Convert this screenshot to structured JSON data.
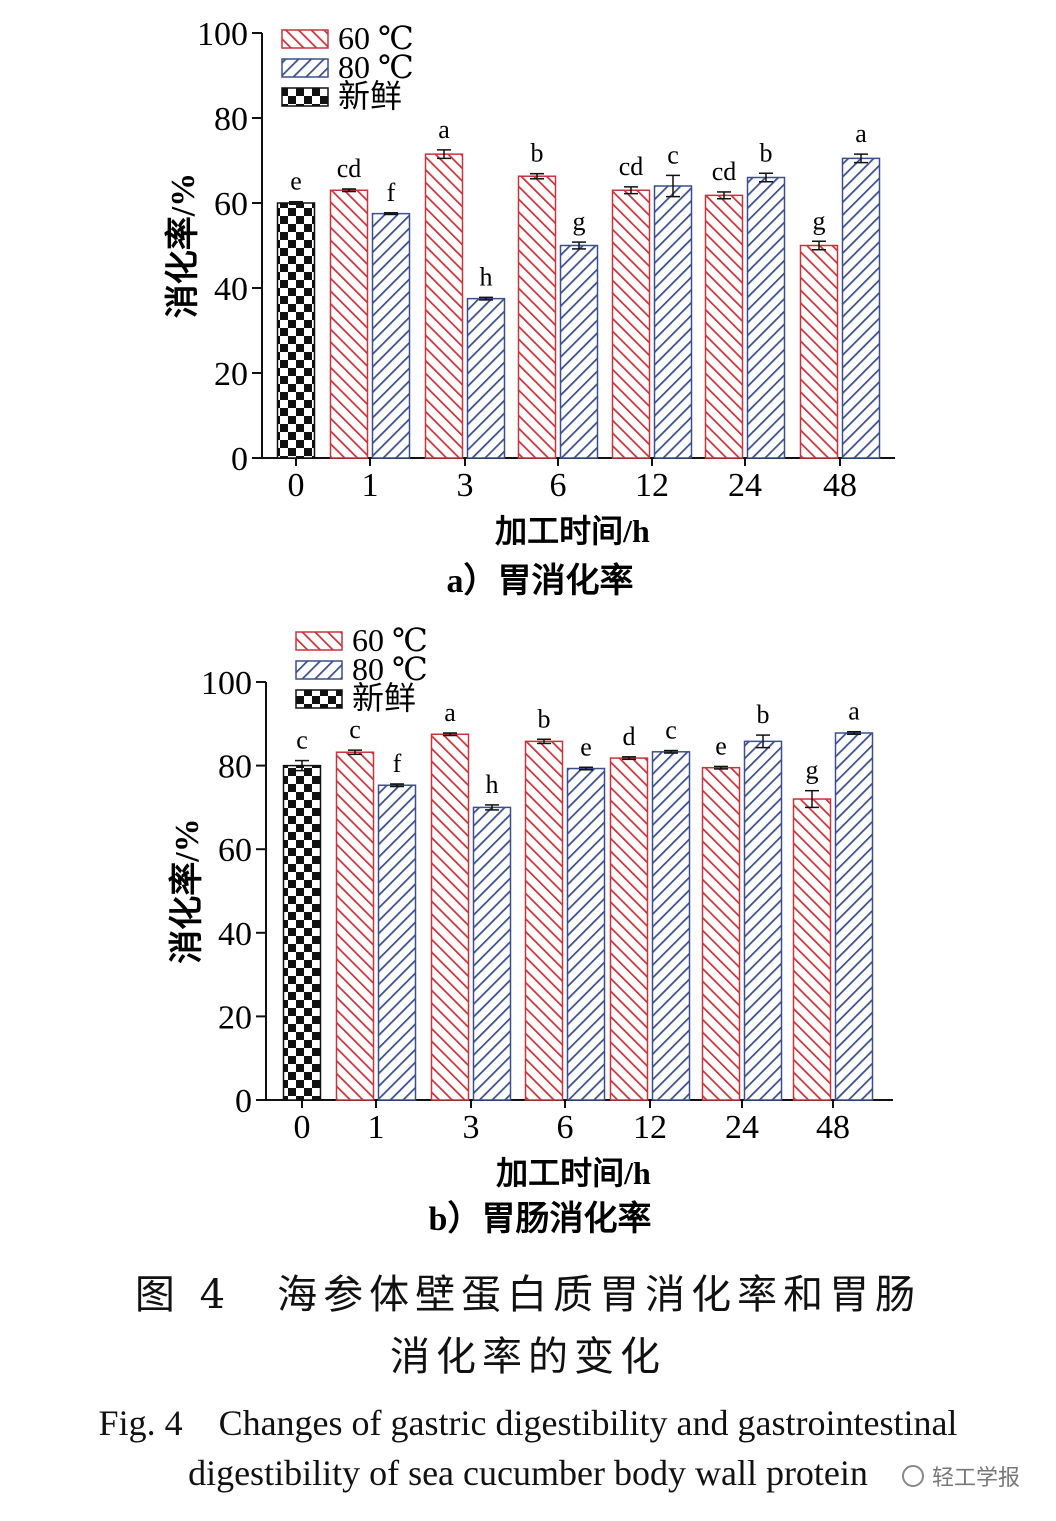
{
  "chart_data": [
    {
      "type": "bar",
      "subtitle": "a）胃消化率",
      "xlabel": "加工时间/h",
      "ylabel": "消化率/%",
      "ylim": [
        0,
        100
      ],
      "yticks": [
        0,
        20,
        40,
        60,
        80,
        100
      ],
      "categories": [
        "0",
        "1",
        "3",
        "6",
        "12",
        "24",
        "48"
      ],
      "legend_position": "top-left",
      "grid": false,
      "series": [
        {
          "name": "60 ℃",
          "color": "#c8343c",
          "values": [
            null,
            63.0,
            71.5,
            66.3,
            63.0,
            61.8,
            50.0
          ],
          "errors": [
            null,
            0.3,
            1.0,
            0.6,
            0.8,
            0.8,
            1.0
          ],
          "labels": [
            null,
            "cd",
            "a",
            "b",
            "cd",
            "cd",
            "g"
          ]
        },
        {
          "name": "80 ℃",
          "color": "#3b4f8c",
          "values": [
            null,
            57.5,
            37.5,
            50.0,
            64.0,
            66.0,
            70.5
          ],
          "errors": [
            null,
            0.2,
            0.3,
            0.8,
            2.5,
            1.0,
            1.0
          ],
          "labels": [
            null,
            "f",
            "h",
            "g",
            "c",
            "b",
            "a"
          ]
        },
        {
          "name": "新鲜",
          "color": "#111111",
          "values": [
            60.0,
            null,
            null,
            null,
            null,
            null,
            null
          ],
          "errors": [
            0.3,
            null,
            null,
            null,
            null,
            null,
            null
          ],
          "labels": [
            "e",
            null,
            null,
            null,
            null,
            null,
            null
          ]
        }
      ]
    },
    {
      "type": "bar",
      "subtitle": "b）胃肠消化率",
      "xlabel": "加工时间/h",
      "ylabel": "消化率/%",
      "ylim": [
        0,
        100
      ],
      "yticks": [
        0,
        20,
        40,
        60,
        80,
        100
      ],
      "categories": [
        "0",
        "1",
        "3",
        "6",
        "12",
        "24",
        "48"
      ],
      "legend_position": "top-left",
      "grid": false,
      "series": [
        {
          "name": "60 ℃",
          "color": "#c8343c",
          "values": [
            null,
            83.2,
            87.5,
            85.8,
            81.8,
            79.5,
            72.0
          ],
          "errors": [
            null,
            0.5,
            0.3,
            0.5,
            0.3,
            0.3,
            2.0
          ],
          "labels": [
            null,
            "c",
            "a",
            "b",
            "d",
            "e",
            "g"
          ]
        },
        {
          "name": "80 ℃",
          "color": "#3b4f8c",
          "values": [
            null,
            75.3,
            70.0,
            79.3,
            83.3,
            85.8,
            87.8
          ],
          "errors": [
            null,
            0.3,
            0.6,
            0.3,
            0.3,
            1.5,
            0.3
          ],
          "labels": [
            null,
            "f",
            "h",
            "e",
            "c",
            "b",
            "a"
          ]
        },
        {
          "name": "新鲜",
          "color": "#111111",
          "values": [
            80.0,
            null,
            null,
            null,
            null,
            null,
            null
          ],
          "errors": [
            1.2,
            null,
            null,
            null,
            null,
            null,
            null
          ],
          "labels": [
            "c",
            null,
            null,
            null,
            null,
            null,
            null
          ]
        }
      ]
    }
  ],
  "caption": {
    "cn_line1": "图 4　海参体壁蛋白质胃消化率和胃肠",
    "cn_line2": "消化率的变化",
    "en_line1": "Fig. 4　Changes of gastric digestibility and gastrointestinal",
    "en_line2": "digestibility of sea cucumber body wall protein"
  },
  "watermark": {
    "text": "轻工学报",
    "icon": "wechat-icon"
  }
}
